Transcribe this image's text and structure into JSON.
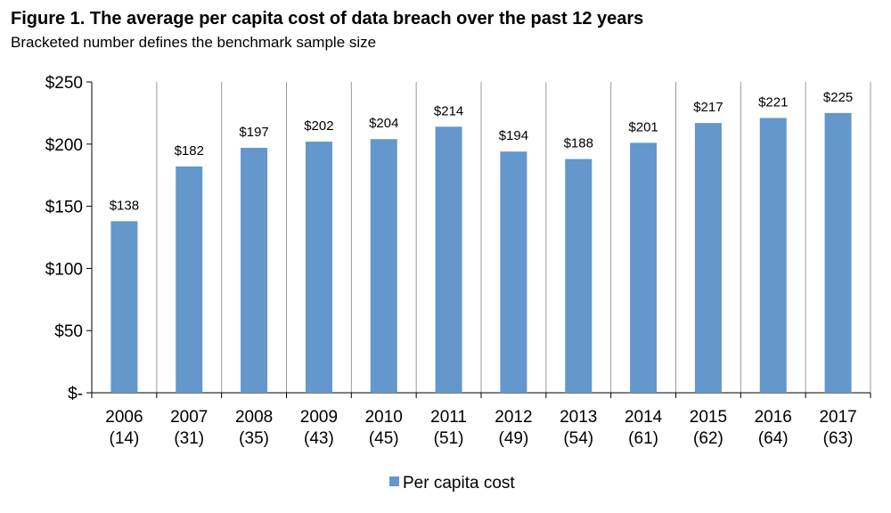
{
  "chart_data": {
    "type": "bar",
    "title": "Figure 1. The average per capita cost of data breach over the past 12 years",
    "subtitle": "Bracketed number defines the benchmark sample size",
    "categories": [
      "2006",
      "2007",
      "2008",
      "2009",
      "2010",
      "2011",
      "2012",
      "2013",
      "2014",
      "2015",
      "2016",
      "2017"
    ],
    "sample_sizes": [
      "(14)",
      "(31)",
      "(35)",
      "(43)",
      "(45)",
      "(51)",
      "(49)",
      "(54)",
      "(61)",
      "(62)",
      "(64)",
      "(63)"
    ],
    "series": [
      {
        "name": "Per capita cost",
        "values": [
          138,
          182,
          197,
          202,
          204,
          214,
          194,
          188,
          201,
          217,
          221,
          225
        ],
        "labels": [
          "$138",
          "$182",
          "$197",
          "$202",
          "$204",
          "$214",
          "$194",
          "$188",
          "$201",
          "$217",
          "$221",
          "$225"
        ],
        "color": "#6497cb"
      }
    ],
    "ylim": [
      0,
      250
    ],
    "yticks": [
      0,
      50,
      100,
      150,
      200,
      250
    ],
    "ytick_labels": [
      "$-",
      "$50",
      "$100",
      "$150",
      "$200",
      "$250"
    ],
    "xlabel": "",
    "ylabel": "",
    "legend": "bottom-center",
    "vertical_gridlines": true
  }
}
